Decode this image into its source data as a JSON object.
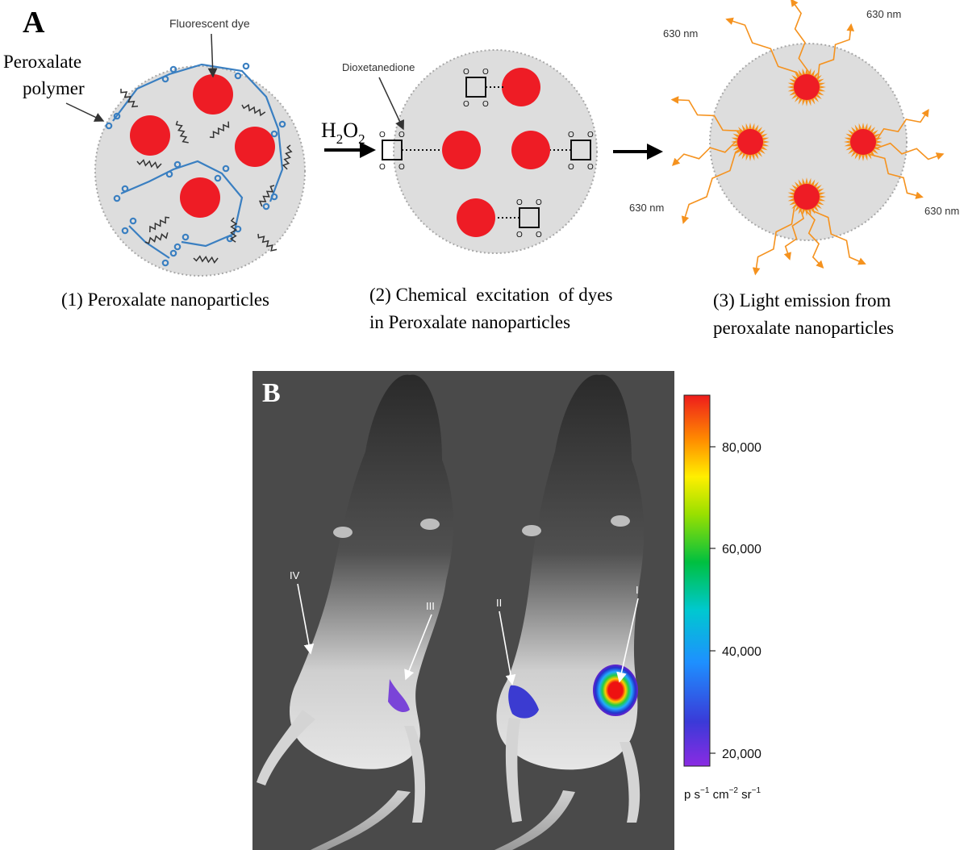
{
  "panel_a": {
    "label": "A",
    "polymer_label_line1": "Peroxalate",
    "polymer_label_line2": "polymer",
    "dye_label": "Fluorescent dye",
    "dioxetanedione_label": "Dioxetanedione",
    "reagent_main": "H",
    "reagent_sub1": "2",
    "reagent_mid": "O",
    "reagent_sub2": "2",
    "wavelength_label": "630 nm",
    "step1_caption": "(1) Peroxalate nanoparticles",
    "step2_caption_line1": "(2) Chemical  excitation  of dyes",
    "step2_caption_line2": "in Peroxalate nanoparticles",
    "step3_caption_line1": "(3) Light emission from",
    "step3_caption_line2": "peroxalate nanoparticles",
    "colors": {
      "dye": "#ee1c25",
      "polymer": "#3a7fc1",
      "particle": "#dddddd",
      "emission": "#f5921e"
    }
  },
  "panel_b": {
    "label": "B",
    "markers": [
      "IV",
      "III",
      "II",
      "I"
    ],
    "colorbar": {
      "ticks": [
        "80,000",
        "60,000",
        "40,000",
        "20,000"
      ],
      "unit_text": "p s",
      "unit_exp1": "−1",
      "unit_cm": " cm",
      "unit_exp2": "−2",
      "unit_sr": " sr",
      "unit_exp3": "−1"
    }
  }
}
